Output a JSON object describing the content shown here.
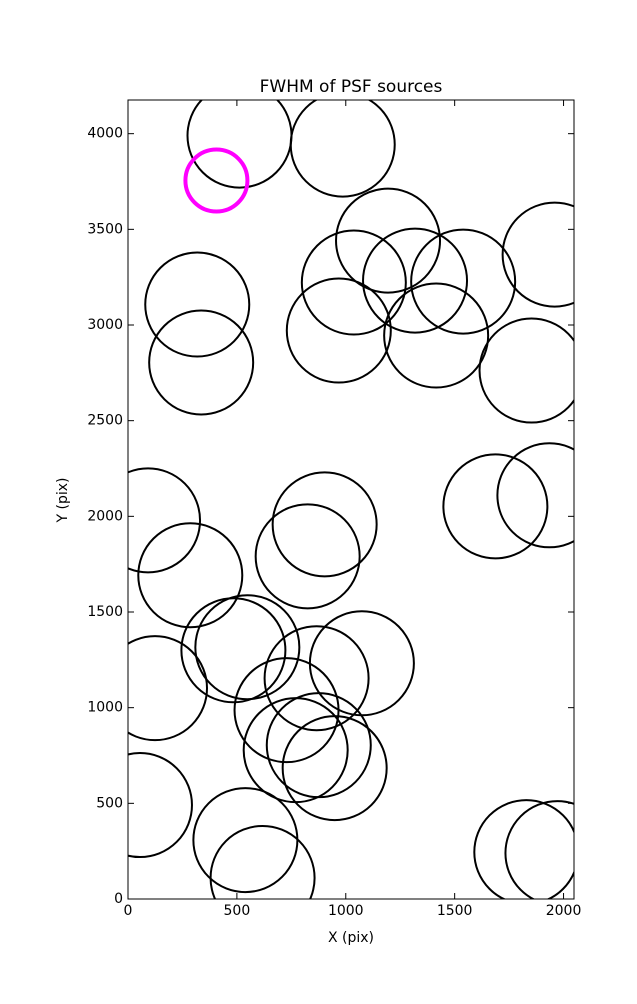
{
  "chart_data": {
    "type": "scatter",
    "title": "FWHM of PSF sources",
    "x_label": "X (pix)",
    "y_label": "Y (pix)",
    "xlim": [
      0,
      2048
    ],
    "ylim": [
      0,
      4176
    ],
    "xticks": [
      0,
      500,
      1000,
      1500,
      2000
    ],
    "yticks": [
      0,
      500,
      1000,
      1500,
      2000,
      2500,
      3000,
      3500,
      4000
    ],
    "grid": false,
    "series": [
      {
        "color": "#000000",
        "x": [
          512,
          986,
          1194,
          1959,
          1037,
          1318,
          1539,
          318,
          968,
          1415,
          1853,
          336,
          92,
          903,
          1687,
          1935,
          825,
          286,
          484,
          548,
          1074,
          866,
          124,
          728,
          770,
          876,
          949,
          55,
          539,
          618,
          1829,
          1972
        ],
        "values": [
          3990,
          3943,
          3441,
          3368,
          3222,
          3232,
          3227,
          3107,
          2971,
          2945,
          2762,
          2804,
          1979,
          1958,
          2052,
          2110,
          1791,
          1692,
          1300,
          1316,
          1232,
          1154,
          1102,
          987,
          778,
          804,
          684,
          491,
          308,
          110,
          245,
          240
        ]
      },
      {
        "color": "#ff00ff",
        "x": [
          406
        ],
        "values": [
          3755
        ]
      }
    ]
  }
}
